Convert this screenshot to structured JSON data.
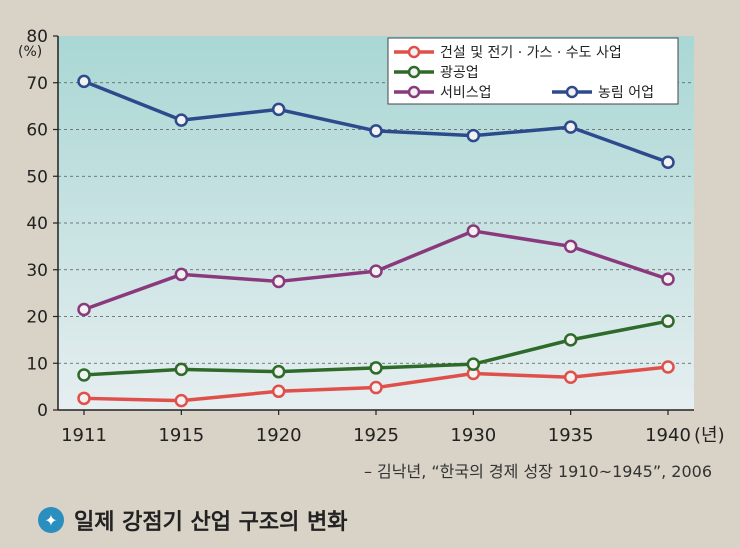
{
  "chart_data": {
    "type": "line",
    "x": [
      1911,
      1915,
      1920,
      1925,
      1930,
      1935,
      1940
    ],
    "x_unit": "(년)",
    "y_unit": "(%)",
    "ylim": [
      0,
      80
    ],
    "yticks": [
      0,
      10,
      20,
      30,
      40,
      50,
      60,
      70,
      80
    ],
    "grid": true,
    "legend_position": "top-right",
    "series": [
      {
        "name": "건설 및 전기 · 가스 · 수도 사업",
        "color": "#e0504a",
        "values": [
          2.5,
          2.0,
          4.0,
          4.8,
          7.8,
          7.0,
          9.2
        ]
      },
      {
        "name": "광공업",
        "color": "#2e6b2a",
        "values": [
          7.5,
          8.7,
          8.2,
          9.0,
          9.8,
          15.0,
          19.0
        ]
      },
      {
        "name": "서비스업",
        "color": "#8a3a7c",
        "values": [
          21.5,
          29.0,
          27.5,
          29.7,
          38.3,
          35.0,
          28.0
        ]
      },
      {
        "name": "농림 어업",
        "color": "#2d4a8c",
        "values": [
          70.3,
          62.0,
          64.3,
          59.7,
          58.7,
          60.5,
          53.0
        ]
      }
    ]
  },
  "source": "– 김낙년, “한국의 경제 성장 1910~1945”, 2006",
  "caption": {
    "icon": "info-icon",
    "text": "일제 강점기 산업 구조의 변화"
  }
}
